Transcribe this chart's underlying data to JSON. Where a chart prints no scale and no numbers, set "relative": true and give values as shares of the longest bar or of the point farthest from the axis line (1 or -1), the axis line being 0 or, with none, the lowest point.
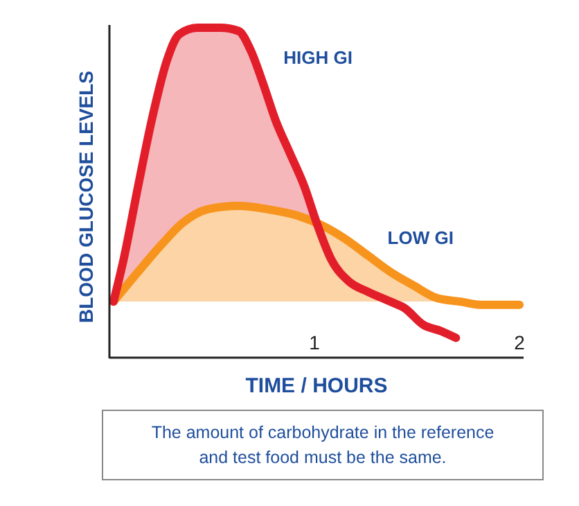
{
  "chart_data": {
    "type": "area",
    "relative": true,
    "xlabel": "TIME / HOURS",
    "ylabel": "BLOOD GLUCOSE LEVELS",
    "xlim": [
      0,
      2.02
    ],
    "xticks": [
      1,
      2
    ],
    "annotations": [
      "The amount of carbohydrate in the reference and test food must be the same."
    ],
    "series": [
      {
        "name": "HIGH GI",
        "color": "#e31e2b",
        "x": [
          0.02,
          0.07,
          0.14,
          0.21,
          0.28,
          0.34,
          0.43,
          0.54,
          0.63,
          0.69,
          0.75,
          0.81,
          0.88,
          0.95,
          1.01,
          1.08,
          1.17,
          1.26,
          1.37,
          1.44,
          1.53,
          1.62,
          1.69
        ],
        "values": [
          0.17,
          0.3,
          0.52,
          0.73,
          0.9,
          0.98,
          1.0,
          1.0,
          0.99,
          0.93,
          0.83,
          0.72,
          0.62,
          0.52,
          0.41,
          0.3,
          0.23,
          0.2,
          0.17,
          0.15,
          0.1,
          0.08,
          0.06
        ]
      },
      {
        "name": "LOW GI",
        "color": "#f7941d",
        "x": [
          0.02,
          0.14,
          0.25,
          0.36,
          0.48,
          0.63,
          0.77,
          0.92,
          1.04,
          1.15,
          1.26,
          1.37,
          1.48,
          1.6,
          1.71,
          1.82,
          2.0
        ],
        "values": [
          0.17,
          0.26,
          0.34,
          0.41,
          0.45,
          0.46,
          0.45,
          0.43,
          0.4,
          0.36,
          0.31,
          0.26,
          0.22,
          0.18,
          0.17,
          0.16,
          0.16
        ]
      }
    ]
  }
}
